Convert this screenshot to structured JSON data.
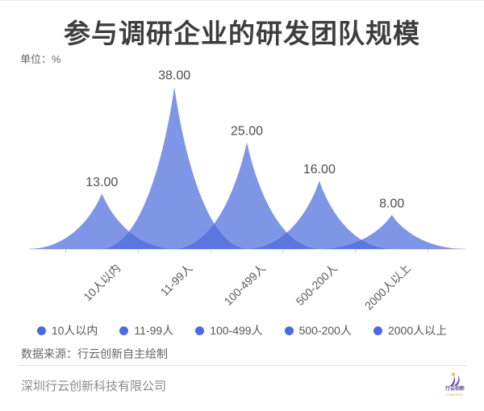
{
  "title": "参与调研企业的研发团队规模",
  "unit_label": "单位：%",
  "chart_data": {
    "type": "area",
    "subtype": "peak-spikes",
    "categories": [
      "10人以内",
      "11-99人",
      "100-499人",
      "500-200人",
      "2000人以上"
    ],
    "values": [
      13,
      38,
      25,
      16,
      8
    ],
    "value_labels": [
      "13.00",
      "38.00",
      "25.00",
      "16.00",
      "8.00"
    ],
    "legend": [
      "10人以内",
      "11-99人",
      "100-499人",
      "500-200人",
      "2000人以上"
    ],
    "title": "参与调研企业的研发团队规模",
    "unit": "%",
    "ylabel": "",
    "xlabel": "",
    "ylim": [
      0,
      40
    ],
    "grid": false,
    "legend_position": "bottom",
    "series_color": "#4D6CDC",
    "series_opacity": 0.72
  },
  "colors": {
    "accent_blue": "#4D6CDC",
    "legend_dot": "#4A6BDF",
    "axis_line": "#cccccc",
    "value_label": "#4d4d4d",
    "title_text": "#3e3e3e"
  },
  "source_note": "数据来源：行云创新自主绘制",
  "footer": {
    "company": "深圳行云创新科技有限公司",
    "logo_text": "行云创新",
    "logo_subtext": "CloudToGo"
  }
}
